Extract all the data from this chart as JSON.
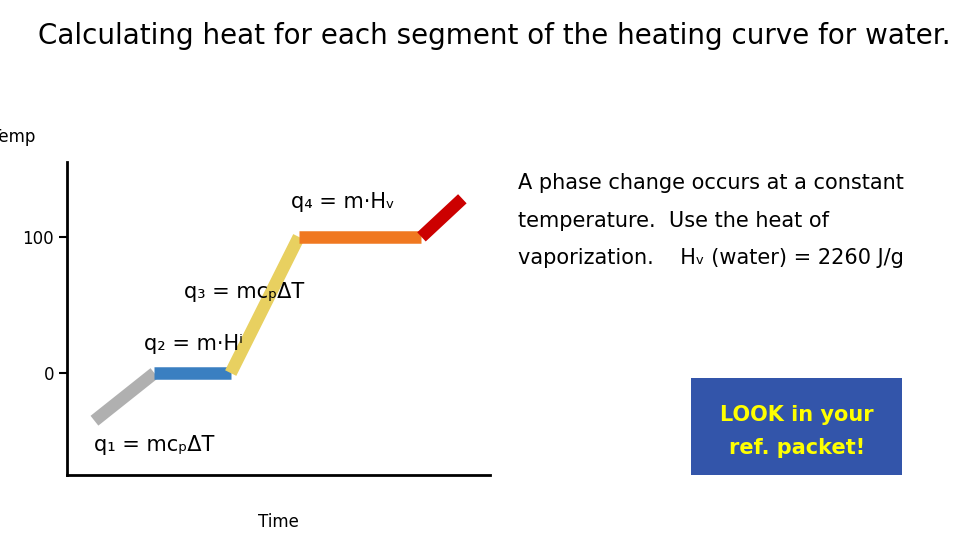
{
  "title": "Calculating heat for each segment of the heating curve for water.",
  "title_fontsize": 20,
  "background_color": "#ffffff",
  "ylabel": "Temp",
  "xlabel": "Time",
  "yticks": [
    0,
    100
  ],
  "segments": [
    {
      "x": [
        1,
        3.2
      ],
      "y": [
        -35,
        0
      ],
      "color": "#b0b0b0",
      "lw": 9
    },
    {
      "x": [
        3.2,
        6.0
      ],
      "y": [
        0,
        0
      ],
      "color": "#3a7fc1",
      "lw": 9
    },
    {
      "x": [
        6.0,
        8.5
      ],
      "y": [
        0,
        100
      ],
      "color": "#e8d060",
      "lw": 9
    },
    {
      "x": [
        8.5,
        13.0
      ],
      "y": [
        100,
        100
      ],
      "color": "#f07820",
      "lw": 9
    },
    {
      "x": [
        13.0,
        14.5
      ],
      "y": [
        100,
        128
      ],
      "color": "#cc0000",
      "lw": 9
    }
  ],
  "q1_text": "q₁ = mcₚΔT",
  "q1_x": 1.0,
  "q1_y": -60,
  "q2_text": "q₂ = m·Hⁱ",
  "q2_x": 2.8,
  "q2_y": 14,
  "q3_text": "q₃ = mcₚΔT",
  "q3_x": 4.3,
  "q3_y": 52,
  "q4_text": "q₄ = m·Hᵥ",
  "q4_x": 8.2,
  "q4_y": 118,
  "phase_line1": "A phase change occurs at a constant",
  "phase_line2": "temperature.  Use the heat of",
  "phase_line3": "vaporization.    Hᵥ (water) = 2260 J/g",
  "box_text_line1": "LOOK in your",
  "box_text_line2": "ref. packet!",
  "xlim": [
    0,
    15.5
  ],
  "ylim": [
    -75,
    155
  ],
  "annotation_fontsize": 15,
  "phase_fontsize": 15,
  "box_bg": "#3355aa",
  "box_text_color": "#ffff00"
}
